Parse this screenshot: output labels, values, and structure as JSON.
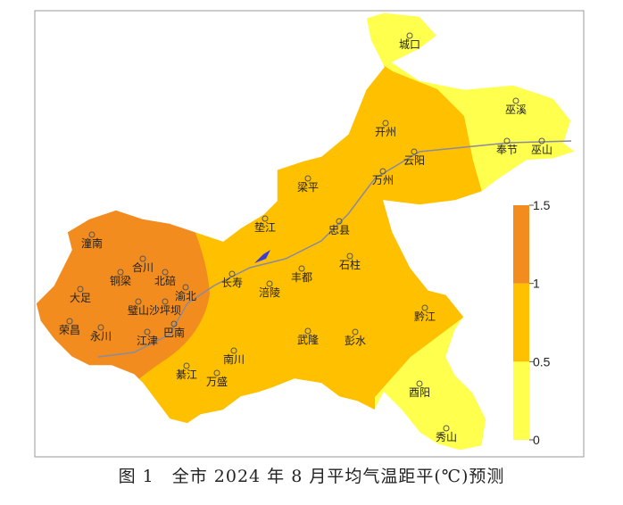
{
  "map": {
    "cities": [
      "城口",
      "巫溪",
      "开州",
      "云阳",
      "奉节",
      "巫山",
      "万州",
      "梁平",
      "垫江",
      "忠县",
      "石柱",
      "长寿",
      "丰都",
      "涪陵",
      "潼南",
      "合川",
      "铜梁",
      "北碚",
      "渝北",
      "大足",
      "璧山",
      "沙坪坝",
      "荣昌",
      "永川",
      "巴南",
      "江津",
      "綦江",
      "南川",
      "万盛",
      "武隆",
      "彭水",
      "黔江",
      "酉阳",
      "秀山"
    ],
    "legend": {
      "ticks": [
        0,
        0.5,
        1,
        1.5
      ],
      "colors": [
        "#ffff4d",
        "#ffc000",
        "#f28c1e"
      ]
    },
    "caption": "图 1　全市 2024 年 8 月平均气温距平(℃)预测"
  }
}
